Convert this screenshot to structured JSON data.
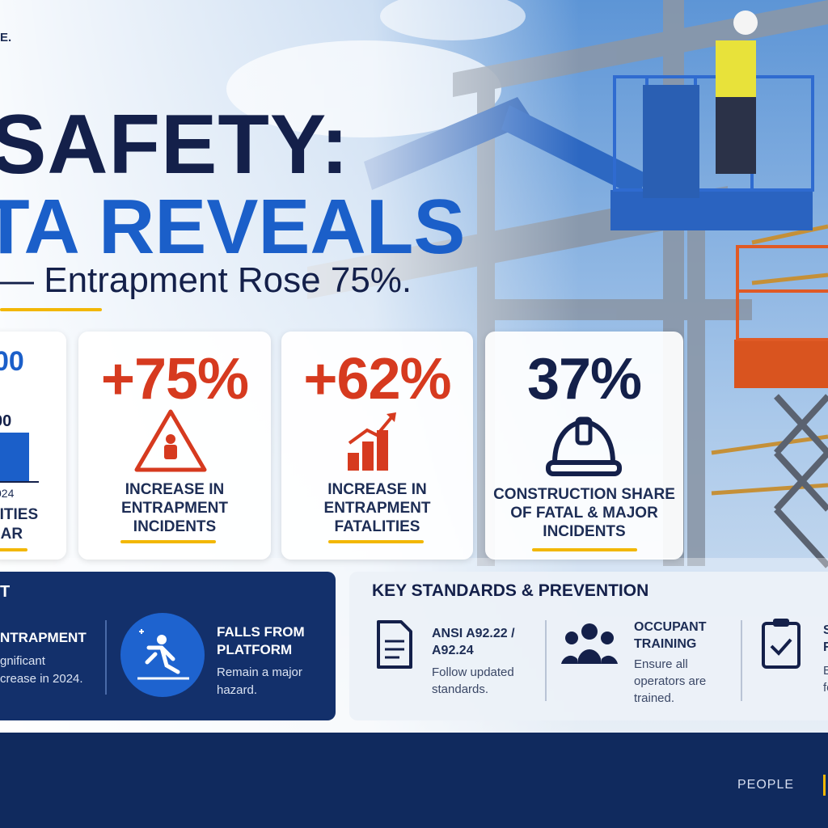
{
  "header": {
    "corner": "E.",
    "title_line1": "SAFETY:",
    "title_line2": "TA REVEALS",
    "subtitle": "— Entrapment Rose 75%."
  },
  "stats": [
    {
      "value": "00",
      "value2": "00",
      "year": "024",
      "label_lines": [
        "LITIES",
        "EAR"
      ]
    },
    {
      "value": "+75%",
      "label": "INCREASE IN ENTRAPMENT INCIDENTS"
    },
    {
      "value": "+62%",
      "label": "INCREASE IN ENTRAPMENT FATALITIES"
    },
    {
      "value": "37%",
      "label": "CONSTRUCTION SHARE OF FATAL & MAJOR INCIDENTS"
    }
  ],
  "hazards": {
    "title": "T",
    "items": [
      {
        "heading": "NTRAPMENT",
        "body_lines": [
          "gnificant",
          "crease in 2024."
        ]
      },
      {
        "heading": "FALLS FROM PLATFORM",
        "body": "Remain a major hazard."
      }
    ]
  },
  "standards": {
    "title": "KEY STANDARDS & PREVENTION",
    "items": [
      {
        "heading": "ANSI A92.22 / A92.24",
        "body": "Follow updated standards."
      },
      {
        "heading": "OCCUPANT TRAINING",
        "body": "Ensure all operators are trained."
      },
      {
        "heading_lines": [
          "S",
          "R"
        ],
        "body_lines": [
          "E",
          "fo"
        ]
      }
    ]
  },
  "footer": {
    "text": "PEOPLE"
  }
}
